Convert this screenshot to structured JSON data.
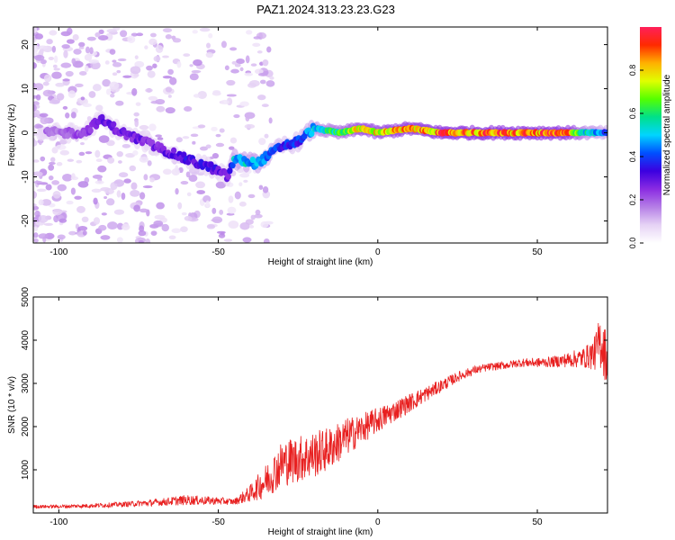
{
  "title": "PAZ1.2024.313.23.23.G23",
  "chart_data": [
    {
      "type": "heatmap",
      "xlabel": "Height of straight line (km)",
      "ylabel": "Frequency (Hz)",
      "xlim": [
        -108,
        72
      ],
      "ylim": [
        -25,
        24
      ],
      "xticks": [
        -100,
        -50,
        0,
        50
      ],
      "yticks": [
        -20,
        -10,
        0,
        10,
        20
      ],
      "colorbar": {
        "label": "Normalized spectral amplitude",
        "range": [
          0,
          1
        ],
        "ticks": [
          0.0,
          0.2,
          0.4,
          0.6,
          0.8
        ],
        "colors": [
          "#ffffff",
          "#e6d3f5",
          "#b57ee6",
          "#8a2be2",
          "#3b00e0",
          "#0050ff",
          "#00d5ff",
          "#00e08a",
          "#55ff00",
          "#e0ff00",
          "#ffb000",
          "#ff2a00",
          "#ff1f5a"
        ]
      },
      "ridge": [
        {
          "x": -100,
          "y": 0,
          "a": 0.2
        },
        {
          "x": -92,
          "y": 0,
          "a": 0.25
        },
        {
          "x": -87,
          "y": 3,
          "a": 0.3
        },
        {
          "x": -80,
          "y": 0,
          "a": 0.3
        },
        {
          "x": -70,
          "y": -3,
          "a": 0.3
        },
        {
          "x": -60,
          "y": -6,
          "a": 0.35
        },
        {
          "x": -52,
          "y": -8,
          "a": 0.35
        },
        {
          "x": -47,
          "y": -10,
          "a": 0.3
        },
        {
          "x": -45,
          "y": -6,
          "a": 0.55
        },
        {
          "x": -38,
          "y": -7,
          "a": 0.55
        },
        {
          "x": -30,
          "y": -3,
          "a": 0.4
        },
        {
          "x": -25,
          "y": -2,
          "a": 0.4
        },
        {
          "x": -20,
          "y": 1,
          "a": 0.55
        },
        {
          "x": -12,
          "y": 0,
          "a": 0.7
        },
        {
          "x": -5,
          "y": 1,
          "a": 0.85
        },
        {
          "x": 0,
          "y": 0,
          "a": 0.85
        },
        {
          "x": 10,
          "y": 1,
          "a": 0.9
        },
        {
          "x": 20,
          "y": 0,
          "a": 0.95
        },
        {
          "x": 40,
          "y": 0,
          "a": 0.95
        },
        {
          "x": 60,
          "y": 0,
          "a": 0.95
        },
        {
          "x": 65,
          "y": 0,
          "a": 0.6
        },
        {
          "x": 72,
          "y": 0,
          "a": 0.45
        }
      ]
    },
    {
      "type": "line",
      "xlabel": "Height of straight line (km)",
      "ylabel": "SNR (10 * v/v)",
      "xlim": [
        -108,
        72
      ],
      "ylim": [
        0,
        5000
      ],
      "xticks": [
        -100,
        -50,
        0,
        50
      ],
      "yticks": [
        1000,
        2000,
        3000,
        4000,
        5000
      ],
      "color": "#e82020",
      "series": [
        {
          "x": [
            -108,
            -100,
            -90,
            -80,
            -70,
            -60,
            -50,
            -45,
            -40,
            -35,
            -30,
            -25,
            -20,
            -15,
            -10,
            -5,
            0,
            5,
            10,
            15,
            20,
            25,
            30,
            35,
            40,
            45,
            50,
            55,
            60,
            65,
            68,
            70,
            72
          ],
          "values": [
            150,
            150,
            170,
            200,
            240,
            300,
            280,
            260,
            450,
            750,
            1150,
            1250,
            1350,
            1500,
            1750,
            1950,
            2150,
            2350,
            2550,
            2750,
            2950,
            3150,
            3300,
            3380,
            3420,
            3480,
            3480,
            3500,
            3550,
            3600,
            3700,
            4000,
            3500
          ],
          "noise": [
            40,
            40,
            50,
            60,
            80,
            120,
            90,
            70,
            200,
            400,
            550,
            550,
            550,
            500,
            450,
            350,
            300,
            250,
            220,
            180,
            150,
            120,
            100,
            90,
            90,
            100,
            110,
            130,
            180,
            250,
            400,
            700,
            600
          ]
        }
      ]
    }
  ]
}
